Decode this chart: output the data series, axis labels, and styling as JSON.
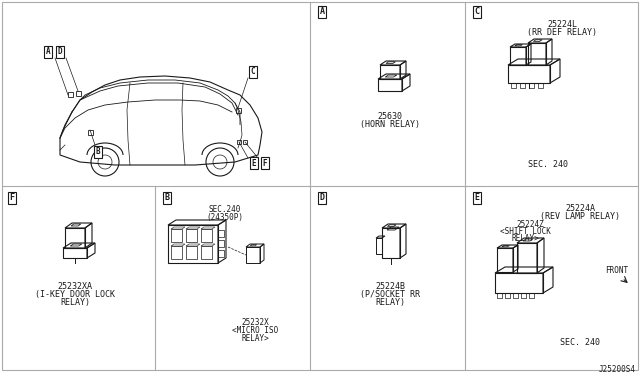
{
  "bg_color": "#ffffff",
  "grid_color": "#aaaaaa",
  "dc": "#1a1a1a",
  "sections": {
    "A": {
      "part": "25630",
      "desc": "(HORN RELAY)"
    },
    "B": {
      "sec": "SEC.240",
      "part2": "(24350P)",
      "relay_part": "25232X",
      "relay_desc": "<MICRO ISO",
      "relay_desc2": "RELAY>"
    },
    "C": {
      "part": "25224L",
      "desc": "(RR DEF RELAY)",
      "sub": "SEC. 240"
    },
    "D": {
      "part": "25224B",
      "desc": "(P/SOCKET RR",
      "desc2": "RELAY)"
    },
    "E": {
      "part_a": "25224A",
      "desc_a": "(REV LAMP RELAY)",
      "part_b": "25224Z",
      "desc_b": "<SHIFT LOCK",
      "desc_b2": "RELAY>",
      "sub": "SEC. 240",
      "front": "FRONT"
    },
    "F": {
      "part": "25232XA",
      "desc": "(I-KEY DOOR LOCK",
      "desc2": "RELAY)"
    }
  },
  "bottom_right": "J25200S4"
}
